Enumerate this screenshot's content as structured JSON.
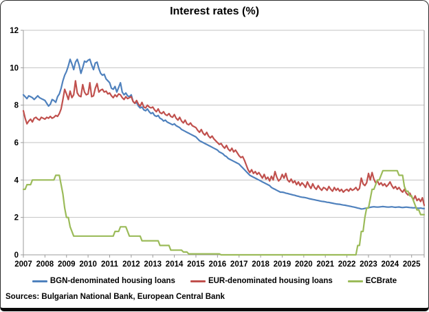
{
  "title": "Interest rates (%)",
  "sources_note": "Sources: Bulgarian National Bank, European Central Bank",
  "colors": {
    "bgn_line": "#4F81BD",
    "eur_line": "#C0504D",
    "ecb_line": "#9BBB59",
    "gridline": "#C3C3C3",
    "axis": "#9B9B9B",
    "text": "#000000",
    "background": "#FFFFFF"
  },
  "legend": {
    "items": [
      {
        "label": "BGN-denominated housing loans",
        "color": "#4F81BD"
      },
      {
        "label": "EUR-denominated housing loans",
        "color": "#C0504D"
      },
      {
        "label": "ECBrate",
        "color": "#9BBB59"
      }
    ]
  },
  "chart_data": {
    "type": "line",
    "title": "Interest rates (%)",
    "xlabel": "",
    "ylabel": "",
    "ylim": [
      0,
      12
    ],
    "y_ticks": [
      0,
      2,
      4,
      6,
      8,
      10,
      12
    ],
    "grid": "horizontal",
    "legend_position": "bottom",
    "x_frequency": "monthly",
    "x_range": "Jan 2007 - Aug 2025",
    "x_tick_labels": [
      "2007",
      "2008",
      "2009",
      "2010",
      "2011",
      "2012",
      "2013",
      "2014",
      "2015",
      "2016",
      "2017",
      "2018",
      "2019",
      "2020",
      "2021",
      "2022",
      "2023",
      "2024",
      "2025"
    ],
    "series": [
      {
        "id": "bgn",
        "name": "BGN-denominated housing loans",
        "color": "#4F81BD",
        "values": [
          8.55,
          8.45,
          8.35,
          8.5,
          8.45,
          8.4,
          8.3,
          8.4,
          8.5,
          8.4,
          8.35,
          8.3,
          8.25,
          8.1,
          7.95,
          8.05,
          8.3,
          8.25,
          8.15,
          8.45,
          8.6,
          8.9,
          9.3,
          9.6,
          9.8,
          10.1,
          10.45,
          10.2,
          9.9,
          10.3,
          10.45,
          10.15,
          9.7,
          10.0,
          10.35,
          10.3,
          10.4,
          10.45,
          10.15,
          9.9,
          10.25,
          10.3,
          9.95,
          9.7,
          9.6,
          9.65,
          9.4,
          9.3,
          9.2,
          8.9,
          8.85,
          9.0,
          8.7,
          8.95,
          9.2,
          8.7,
          8.55,
          8.65,
          8.5,
          8.45,
          8.55,
          8.2,
          8.1,
          8.15,
          7.95,
          7.85,
          7.9,
          7.75,
          7.7,
          7.8,
          7.65,
          7.55,
          7.6,
          7.45,
          7.4,
          7.45,
          7.3,
          7.25,
          7.15,
          7.2,
          7.1,
          7.05,
          7.0,
          6.95,
          7.0,
          6.9,
          6.85,
          6.8,
          6.7,
          6.65,
          6.6,
          6.55,
          6.5,
          6.45,
          6.4,
          6.35,
          6.3,
          6.2,
          6.1,
          6.05,
          6.0,
          5.95,
          5.9,
          5.85,
          5.8,
          5.75,
          5.7,
          5.65,
          5.6,
          5.5,
          5.45,
          5.4,
          5.3,
          5.25,
          5.15,
          5.1,
          5.05,
          5.0,
          4.95,
          4.9,
          4.85,
          4.75,
          4.65,
          4.55,
          4.45,
          4.35,
          4.25,
          4.2,
          4.15,
          4.1,
          4.05,
          4.0,
          3.95,
          3.9,
          3.85,
          3.8,
          3.75,
          3.7,
          3.6,
          3.55,
          3.5,
          3.45,
          3.4,
          3.35,
          3.35,
          3.33,
          3.3,
          3.28,
          3.25,
          3.23,
          3.2,
          3.18,
          3.15,
          3.13,
          3.1,
          3.08,
          3.07,
          3.05,
          3.03,
          3.0,
          2.98,
          2.96,
          2.94,
          2.92,
          2.9,
          2.88,
          2.86,
          2.85,
          2.83,
          2.81,
          2.8,
          2.78,
          2.76,
          2.74,
          2.72,
          2.71,
          2.7,
          2.68,
          2.66,
          2.65,
          2.63,
          2.61,
          2.59,
          2.57,
          2.55,
          2.53,
          2.5,
          2.48,
          2.45,
          2.46,
          2.48,
          2.5,
          2.52,
          2.54,
          2.56,
          2.57,
          2.56,
          2.55,
          2.56,
          2.57,
          2.58,
          2.57,
          2.56,
          2.55,
          2.56,
          2.57,
          2.55,
          2.54,
          2.55,
          2.56,
          2.54,
          2.53,
          2.54,
          2.55,
          2.54,
          2.53,
          2.52,
          2.51,
          2.52,
          2.5,
          2.49,
          2.5,
          2.48,
          2.47
        ]
      },
      {
        "id": "eur",
        "name": "EUR-denominated housing loans",
        "color": "#C0504D",
        "values": [
          7.7,
          7.3,
          7.0,
          7.15,
          7.25,
          7.1,
          7.3,
          7.35,
          7.25,
          7.2,
          7.35,
          7.3,
          7.25,
          7.35,
          7.3,
          7.4,
          7.3,
          7.35,
          7.45,
          7.4,
          7.55,
          7.8,
          8.3,
          8.85,
          8.6,
          8.3,
          8.75,
          8.4,
          8.55,
          9.3,
          8.65,
          8.5,
          8.45,
          9.1,
          8.7,
          8.55,
          8.6,
          9.2,
          8.45,
          8.5,
          8.9,
          9.15,
          8.7,
          8.8,
          8.85,
          8.7,
          8.75,
          8.6,
          8.65,
          8.5,
          8.4,
          8.55,
          8.45,
          8.6,
          8.55,
          8.4,
          8.3,
          8.45,
          8.35,
          8.4,
          8.45,
          8.2,
          8.1,
          8.25,
          8.05,
          7.95,
          8.15,
          7.9,
          7.85,
          8.0,
          7.9,
          7.85,
          7.9,
          7.75,
          7.65,
          7.8,
          7.6,
          7.55,
          7.65,
          7.5,
          7.45,
          7.55,
          7.4,
          7.35,
          7.5,
          7.3,
          7.2,
          7.35,
          7.15,
          7.05,
          7.2,
          7.0,
          6.95,
          7.05,
          6.9,
          6.85,
          6.8,
          6.65,
          6.55,
          6.7,
          6.5,
          6.4,
          6.55,
          6.35,
          6.25,
          6.35,
          6.2,
          6.1,
          6.0,
          5.9,
          5.95,
          5.8,
          5.7,
          5.85,
          5.65,
          5.55,
          5.7,
          5.5,
          5.6,
          5.45,
          5.3,
          5.2,
          5.25,
          5.05,
          4.8,
          4.55,
          4.4,
          4.55,
          4.35,
          4.45,
          4.3,
          4.4,
          4.25,
          4.1,
          4.3,
          4.05,
          4.15,
          3.95,
          4.2,
          4.0,
          4.45,
          4.15,
          3.95,
          4.05,
          4.3,
          4.1,
          4.35,
          4.0,
          3.9,
          4.05,
          3.85,
          3.95,
          3.75,
          3.9,
          3.7,
          3.85,
          3.75,
          3.6,
          3.9,
          3.7,
          3.55,
          3.8,
          3.6,
          3.5,
          3.7,
          3.55,
          3.45,
          3.6,
          3.55,
          3.45,
          3.65,
          3.5,
          3.4,
          3.6,
          3.45,
          3.55,
          3.4,
          3.5,
          3.35,
          3.45,
          3.5,
          3.4,
          3.55,
          3.45,
          3.5,
          3.6,
          3.45,
          3.55,
          4.1,
          3.8,
          3.7,
          3.85,
          4.35,
          4.0,
          4.4,
          4.05,
          3.85,
          3.95,
          3.75,
          3.85,
          3.7,
          3.8,
          3.65,
          3.75,
          3.9,
          3.7,
          3.55,
          3.65,
          3.5,
          3.6,
          3.45,
          3.35,
          3.5,
          3.3,
          3.2,
          3.3,
          3.1,
          2.95,
          3.15,
          2.9,
          3.0,
          2.85,
          3.05,
          2.65
        ]
      },
      {
        "id": "ecb",
        "name": "ECBrate",
        "color": "#9BBB59",
        "values": [
          3.5,
          3.5,
          3.75,
          3.75,
          3.75,
          4.0,
          4.0,
          4.0,
          4.0,
          4.0,
          4.0,
          4.0,
          4.0,
          4.0,
          4.0,
          4.0,
          4.0,
          4.0,
          4.25,
          4.25,
          4.25,
          3.75,
          3.25,
          2.5,
          2.0,
          2.0,
          1.5,
          1.25,
          1.0,
          1.0,
          1.0,
          1.0,
          1.0,
          1.0,
          1.0,
          1.0,
          1.0,
          1.0,
          1.0,
          1.0,
          1.0,
          1.0,
          1.0,
          1.0,
          1.0,
          1.0,
          1.0,
          1.0,
          1.0,
          1.0,
          1.0,
          1.25,
          1.25,
          1.25,
          1.5,
          1.5,
          1.5,
          1.5,
          1.25,
          1.0,
          1.0,
          1.0,
          1.0,
          1.0,
          1.0,
          1.0,
          0.75,
          0.75,
          0.75,
          0.75,
          0.75,
          0.75,
          0.75,
          0.75,
          0.75,
          0.75,
          0.5,
          0.5,
          0.5,
          0.5,
          0.5,
          0.5,
          0.25,
          0.25,
          0.25,
          0.25,
          0.25,
          0.25,
          0.25,
          0.15,
          0.15,
          0.15,
          0.05,
          0.05,
          0.05,
          0.05,
          0.05,
          0.05,
          0.05,
          0.05,
          0.05,
          0.05,
          0.05,
          0.05,
          0.05,
          0.05,
          0.05,
          0.05,
          0.05,
          0.05,
          0.0,
          0.0,
          0.0,
          0.0,
          0.0,
          0.0,
          0.0,
          0.0,
          0.0,
          0.0,
          0.0,
          0.0,
          0.0,
          0.0,
          0.0,
          0.0,
          0.0,
          0.0,
          0.0,
          0.0,
          0.0,
          0.0,
          0.0,
          0.0,
          0.0,
          0.0,
          0.0,
          0.0,
          0.0,
          0.0,
          0.0,
          0.0,
          0.0,
          0.0,
          0.0,
          0.0,
          0.0,
          0.0,
          0.0,
          0.0,
          0.0,
          0.0,
          0.0,
          0.0,
          0.0,
          0.0,
          0.0,
          0.0,
          0.0,
          0.0,
          0.0,
          0.0,
          0.0,
          0.0,
          0.0,
          0.0,
          0.0,
          0.0,
          0.0,
          0.0,
          0.0,
          0.0,
          0.0,
          0.0,
          0.0,
          0.0,
          0.0,
          0.0,
          0.0,
          0.0,
          0.0,
          0.0,
          0.0,
          0.0,
          0.0,
          0.0,
          0.5,
          0.5,
          1.25,
          1.25,
          2.0,
          2.5,
          2.5,
          3.0,
          3.5,
          3.5,
          3.75,
          4.0,
          4.0,
          4.25,
          4.5,
          4.5,
          4.5,
          4.5,
          4.5,
          4.5,
          4.5,
          4.5,
          4.5,
          4.25,
          4.25,
          4.25,
          3.65,
          3.4,
          3.4,
          3.15,
          3.15,
          2.9,
          2.65,
          2.4,
          2.4,
          2.15,
          2.15,
          2.15
        ]
      }
    ]
  }
}
